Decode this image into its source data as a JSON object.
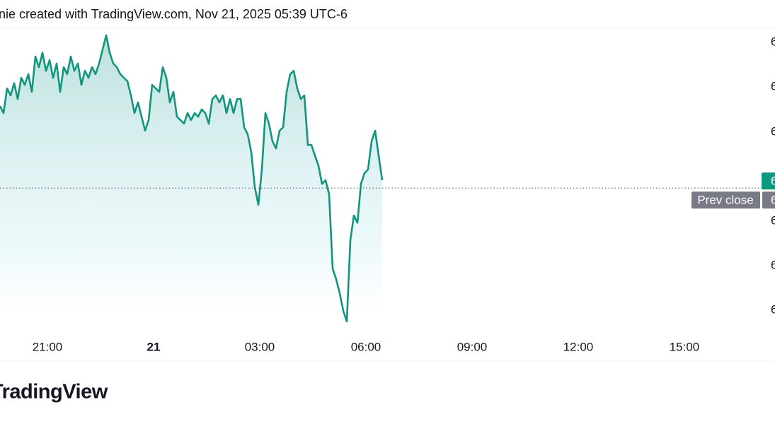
{
  "header": "nie created with TradingView.com, Nov 21, 2025 05:39 UTC-6",
  "logo": "TradingView",
  "chart_data": {
    "type": "line",
    "x": [
      -1.34,
      -1.24,
      -1.14,
      -1.04,
      -0.94,
      -0.84,
      -0.74,
      -0.64,
      -0.54,
      -0.44,
      -0.34,
      -0.24,
      -0.14,
      -0.04,
      0.06,
      0.16,
      0.26,
      0.36,
      0.46,
      0.56,
      0.66,
      0.76,
      0.86,
      0.96,
      1.06,
      1.16,
      1.26,
      1.36,
      1.46,
      1.56,
      1.66,
      1.76,
      1.86,
      1.96,
      2.06,
      2.16,
      2.26,
      2.36,
      2.46,
      2.56,
      2.66,
      2.76,
      2.86,
      2.96,
      3.06,
      3.16,
      3.26,
      3.36,
      3.46,
      3.56,
      3.66,
      3.76,
      3.86,
      3.96,
      4.06,
      4.16,
      4.26,
      4.36,
      4.46,
      4.56,
      4.66,
      4.76,
      4.86,
      4.96,
      5.06,
      5.16,
      5.26,
      5.36,
      5.46,
      5.56,
      5.66,
      5.76,
      5.86,
      5.96,
      6.06,
      6.16,
      6.26,
      6.36,
      6.46,
      6.56,
      6.66,
      6.76,
      6.86,
      6.96,
      7.06,
      7.16,
      7.26,
      7.36,
      7.46,
      7.56,
      7.66,
      7.76,
      7.86,
      7.96,
      8.06,
      8.16,
      8.26,
      8.36,
      8.46,
      8.56,
      8.66,
      8.76,
      8.86,
      8.96,
      9.06,
      9.16,
      9.26,
      9.36,
      9.46
    ],
    "series": [
      {
        "color": "#12947f",
        "values": [
          74.4,
          72.1,
          80.2,
          77.9,
          81.9,
          76.7,
          83.7,
          81.4,
          84.9,
          79.1,
          90.7,
          87.2,
          91.9,
          86.0,
          89.5,
          83.7,
          88.4,
          79.1,
          87.2,
          84.9,
          90.7,
          86.0,
          88.4,
          81.4,
          86.0,
          83.7,
          87.2,
          84.9,
          88.4,
          93.0,
          97.7,
          91.9,
          88.4,
          87.2,
          84.9,
          83.7,
          82.6,
          77.9,
          72.1,
          75.6,
          70.9,
          66.3,
          69.8,
          81.4,
          80.2,
          79.1,
          87.2,
          83.7,
          75.6,
          79.1,
          70.9,
          69.8,
          68.6,
          72.1,
          69.8,
          72.1,
          70.9,
          73.3,
          72.1,
          68.6,
          76.7,
          77.9,
          75.6,
          77.9,
          72.1,
          76.7,
          72.1,
          76.7,
          76.7,
          67.4,
          65.1,
          59.3,
          47.7,
          41.9,
          53.5,
          72.1,
          68.6,
          62.8,
          60.5,
          66.3,
          67.4,
          79.1,
          84.9,
          86.0,
          80.2,
          76.7,
          77.9,
          61.6,
          61.6,
          58.1,
          54.7,
          48.8,
          50.0,
          45.3,
          20.9,
          17.4,
          12.8,
          7.0,
          3.5,
          30.2,
          38.4,
          36.0,
          48.8,
          52.3,
          53.5,
          62.8,
          66.3,
          58.1,
          50.0
        ]
      }
    ],
    "xlim": [
      -1.34,
      20.16
    ],
    "xticks": [
      {
        "value": 0,
        "label": "21:00"
      },
      {
        "value": 3,
        "label": "21"
      },
      {
        "value": 6,
        "label": "03:00"
      },
      {
        "value": 9,
        "label": "06:00"
      },
      {
        "value": 12,
        "label": "09:00"
      },
      {
        "value": 15,
        "label": "12:00"
      },
      {
        "value": 18,
        "label": "15:00"
      }
    ],
    "ylim": [
      0,
      100
    ],
    "yticks": [
      {
        "value": 95.3,
        "label": "6"
      },
      {
        "value": 80.7,
        "label": "6"
      },
      {
        "value": 65.8,
        "label": "6"
      },
      {
        "value": 36.5,
        "label": "6"
      },
      {
        "value": 21.9,
        "label": "6"
      },
      {
        "value": 7.2,
        "label": "6"
      }
    ],
    "prev_close": 47.4,
    "prev_close_label": "Prev close",
    "prev_close_price_label": "6",
    "last_price_label": "6",
    "last_price_color": "#089981"
  }
}
